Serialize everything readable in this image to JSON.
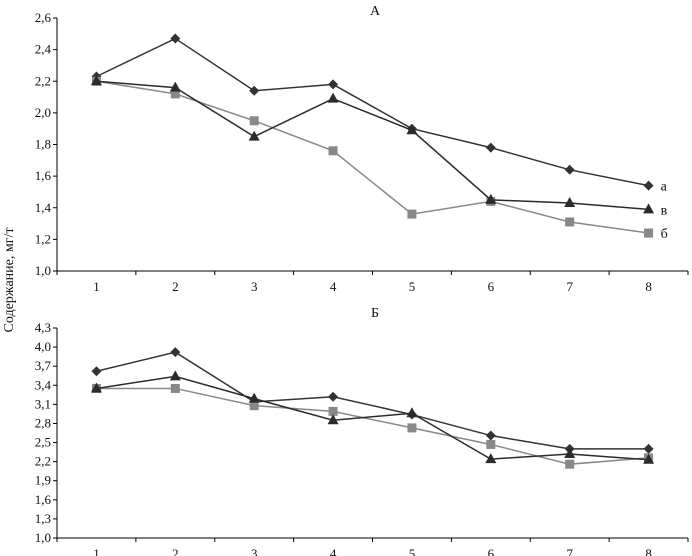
{
  "ylabel": "Содержание, мг/т",
  "colors": {
    "series_a": "#333333",
    "series_b": "#888888",
    "series_v": "#2b2b2b",
    "axis": "#000000"
  },
  "chart_data": [
    {
      "type": "line",
      "title": "А",
      "x": [
        1,
        2,
        3,
        4,
        5,
        6,
        7,
        8
      ],
      "xticks": [
        "1",
        "2",
        "3",
        "4",
        "5",
        "6",
        "7",
        "8"
      ],
      "ylim": [
        1.0,
        2.6
      ],
      "yticks": [
        "1,0",
        "1,2",
        "1,4",
        "1,6",
        "1,8",
        "2,0",
        "2,2",
        "2,4",
        "2,6"
      ],
      "yticks_values": [
        1.0,
        1.2,
        1.4,
        1.6,
        1.8,
        2.0,
        2.2,
        2.4,
        2.6
      ],
      "grid": false,
      "series": [
        {
          "name": "а",
          "marker": "diamond",
          "values": [
            2.23,
            2.47,
            2.14,
            2.18,
            1.9,
            1.78,
            1.64,
            1.54
          ]
        },
        {
          "name": "б",
          "marker": "square",
          "values": [
            2.2,
            2.12,
            1.95,
            1.76,
            1.36,
            1.44,
            1.31,
            1.24
          ]
        },
        {
          "name": "в",
          "marker": "triangle",
          "values": [
            2.2,
            2.16,
            1.85,
            2.09,
            1.89,
            1.45,
            1.43,
            1.39
          ]
        }
      ]
    },
    {
      "type": "line",
      "title": "Б",
      "x": [
        1,
        2,
        3,
        4,
        5,
        6,
        7,
        8
      ],
      "xticks": [
        "1",
        "2",
        "3",
        "4",
        "5",
        "6",
        "7",
        "8"
      ],
      "ylim": [
        1.0,
        4.3
      ],
      "yticks": [
        "1,0",
        "1,3",
        "1,6",
        "1,9",
        "2,2",
        "2,5",
        "2,8",
        "3,1",
        "3,4",
        "3,7",
        "4,0",
        "4,3"
      ],
      "yticks_values": [
        1.0,
        1.3,
        1.6,
        1.9,
        2.2,
        2.5,
        2.8,
        3.1,
        3.4,
        3.7,
        4.0,
        4.3
      ],
      "grid": false,
      "series": [
        {
          "name": "а",
          "marker": "diamond",
          "values": [
            3.62,
            3.92,
            3.14,
            3.22,
            2.94,
            2.61,
            2.4,
            2.4
          ]
        },
        {
          "name": "б",
          "marker": "square",
          "values": [
            3.35,
            3.35,
            3.08,
            2.99,
            2.73,
            2.47,
            2.16,
            2.26
          ]
        },
        {
          "name": "в",
          "marker": "triangle",
          "values": [
            3.35,
            3.54,
            3.19,
            2.85,
            2.96,
            2.24,
            2.32,
            2.23
          ]
        }
      ]
    }
  ]
}
